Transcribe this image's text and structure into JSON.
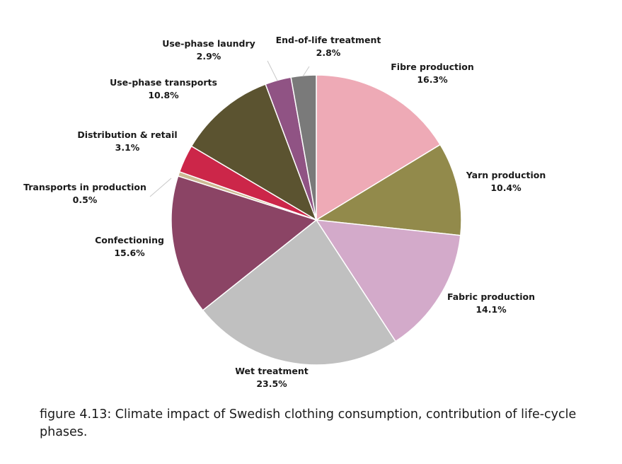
{
  "caption": "figure 4.13: Climate impact of Swedish clothing consumption, contribution of life-cycle phases.",
  "chart_data": {
    "type": "pie",
    "title": "",
    "start_angle_deg": 0,
    "direction": "clockwise",
    "slices": [
      {
        "label": "Fibre production",
        "value": 16.3,
        "display": "16.3%",
        "color": "#eeaab6"
      },
      {
        "label": "Yarn production",
        "value": 10.4,
        "display": "10.4%",
        "color": "#928a4b"
      },
      {
        "label": "Fabric production",
        "value": 14.1,
        "display": "14.1%",
        "color": "#d3aaca"
      },
      {
        "label": "Wet treatment",
        "value": 23.5,
        "display": "23.5%",
        "color": "#c0c0c0"
      },
      {
        "label": "Confectioning",
        "value": 15.6,
        "display": "15.6%",
        "color": "#8b4465"
      },
      {
        "label": "Transports in production",
        "value": 0.5,
        "display": "0.5%",
        "color": "#cdbb94"
      },
      {
        "label": "Distribution & retail",
        "value": 3.1,
        "display": "3.1%",
        "color": "#cc2649"
      },
      {
        "label": "Use-phase transports",
        "value": 10.8,
        "display": "10.8%",
        "color": "#5b5330"
      },
      {
        "label": "Use-phase laundry",
        "value": 2.9,
        "display": "2.9%",
        "color": "#905384"
      },
      {
        "label": "End-of-life treatment",
        "value": 2.8,
        "display": "2.8%",
        "color": "#7a7a7a"
      }
    ]
  }
}
